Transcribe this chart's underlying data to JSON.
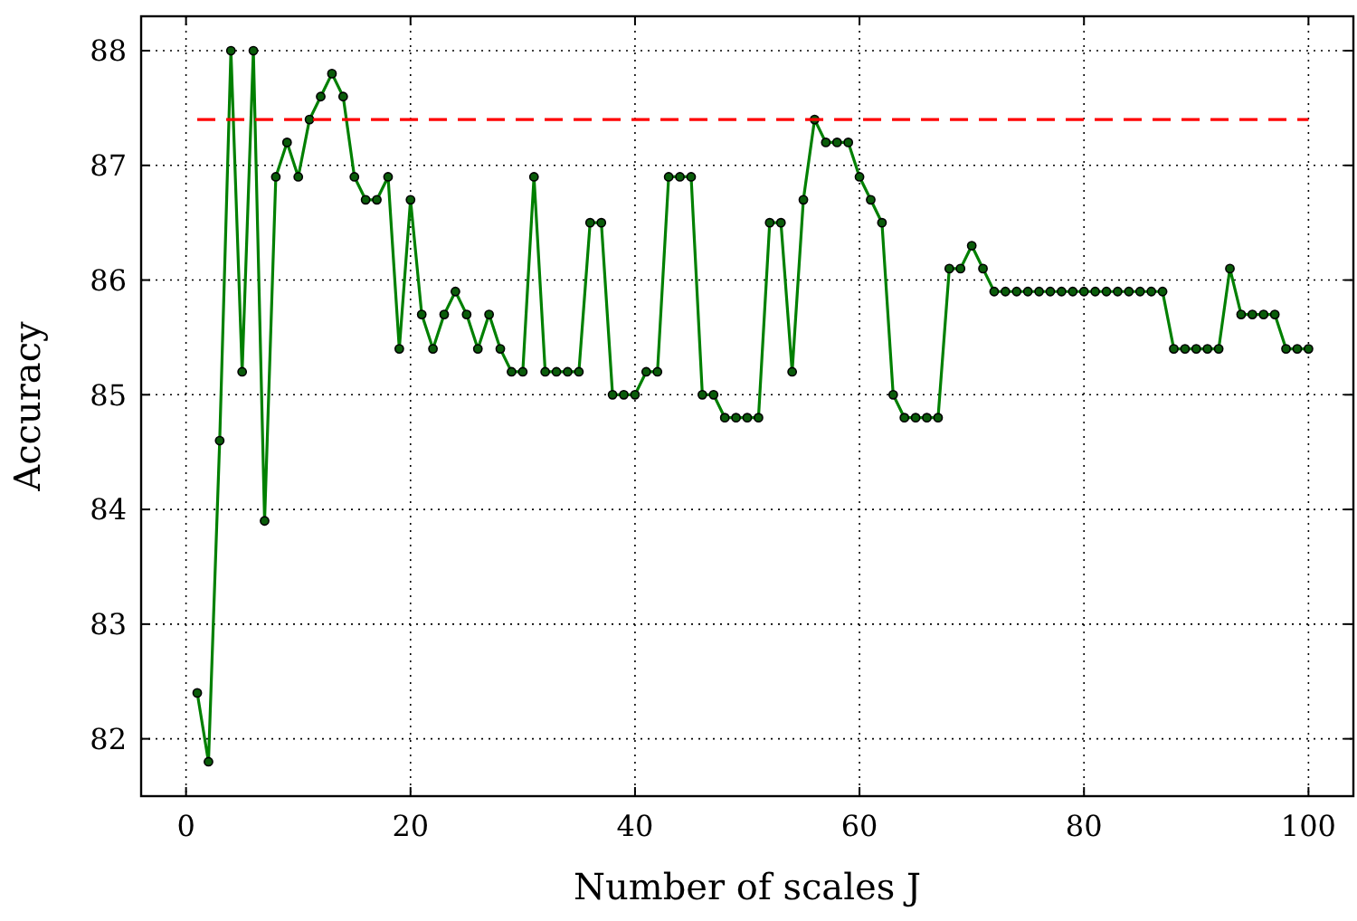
{
  "chart_data": {
    "type": "line",
    "xlabel": "Number of scales J",
    "ylabel": "Accuracy",
    "xlim": [
      -4,
      104
    ],
    "ylim": [
      81.5,
      88.3
    ],
    "xticks": [
      0,
      20,
      40,
      60,
      80,
      100
    ],
    "yticks": [
      82,
      83,
      84,
      85,
      86,
      87,
      88
    ],
    "grid": true,
    "series": [
      {
        "color": "#008000",
        "marker": "circle",
        "line_style": "solid",
        "x": [
          1,
          2,
          3,
          4,
          5,
          6,
          7,
          8,
          9,
          10,
          11,
          12,
          13,
          14,
          15,
          16,
          17,
          18,
          19,
          20,
          21,
          22,
          23,
          24,
          25,
          26,
          27,
          28,
          29,
          30,
          31,
          32,
          33,
          34,
          35,
          36,
          37,
          38,
          39,
          40,
          41,
          42,
          43,
          44,
          45,
          46,
          47,
          48,
          49,
          50,
          51,
          52,
          53,
          54,
          55,
          56,
          57,
          58,
          59,
          60,
          61,
          62,
          63,
          64,
          65,
          66,
          67,
          68,
          69,
          70,
          71,
          72,
          73,
          74,
          75,
          76,
          77,
          78,
          79,
          80,
          81,
          82,
          83,
          84,
          85,
          86,
          87,
          88,
          89,
          90,
          91,
          92,
          93,
          94,
          95,
          96,
          97,
          98,
          99,
          100
        ],
        "values": [
          82.4,
          81.8,
          84.6,
          88.0,
          85.2,
          88.0,
          83.9,
          86.9,
          87.2,
          86.9,
          87.4,
          87.6,
          87.8,
          87.6,
          86.9,
          86.7,
          86.7,
          86.9,
          85.4,
          86.7,
          85.7,
          85.4,
          85.7,
          85.9,
          85.7,
          85.4,
          85.7,
          85.4,
          85.2,
          85.2,
          86.9,
          85.2,
          85.2,
          85.2,
          85.2,
          86.5,
          86.5,
          85.0,
          85.0,
          85.0,
          85.2,
          85.2,
          86.9,
          86.9,
          86.9,
          85.0,
          85.0,
          84.8,
          84.8,
          84.8,
          84.8,
          86.5,
          86.5,
          85.2,
          86.7,
          87.4,
          87.2,
          87.2,
          87.2,
          86.9,
          86.7,
          86.5,
          85.0,
          84.8,
          84.8,
          84.8,
          84.8,
          86.1,
          86.1,
          86.3,
          86.1,
          85.9,
          85.9,
          85.9,
          85.9,
          85.9,
          85.9,
          85.9,
          85.9,
          85.9,
          85.9,
          85.9,
          85.9,
          85.9,
          85.9,
          85.9,
          85.9,
          85.4,
          85.4,
          85.4,
          85.4,
          85.4,
          86.1,
          85.7,
          85.7,
          85.7,
          85.7,
          85.4,
          85.4,
          85.4
        ]
      },
      {
        "type": "line",
        "color": "#ff0000",
        "marker": "none",
        "line_style": "dashed",
        "x": [
          1,
          100
        ],
        "values": [
          87.4,
          87.4
        ]
      }
    ]
  }
}
